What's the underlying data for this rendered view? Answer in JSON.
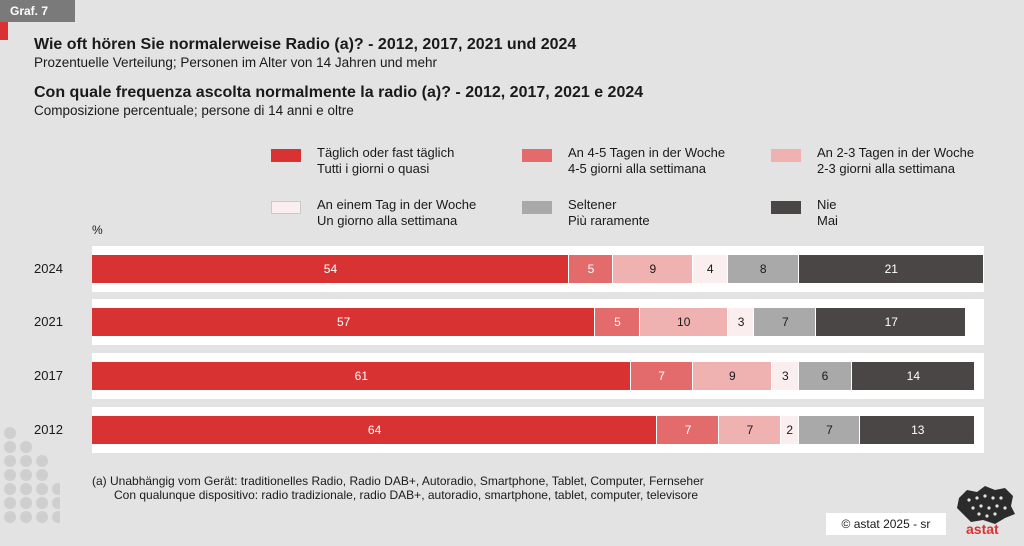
{
  "graph_tag": "Graf. 7",
  "title_de": "Wie oft hören Sie normalerweise Radio (a)? - 2012, 2017, 2021 und 2024",
  "subtitle_de": "Prozentuelle Verteilung; Personen im Alter von 14 Jahren und mehr",
  "title_it": "Con quale frequenza ascolta normalmente la radio (a)? - 2012, 2017, 2021 e 2024",
  "subtitle_it": "Composizione percentuale; persone di 14 anni e oltre",
  "legend": [
    {
      "de": "Täglich oder fast täglich",
      "it": "Tutti i giorni o quasi",
      "color": "#d93232"
    },
    {
      "de": "An 4-5 Tagen in der Woche",
      "it": "4-5 giorni alla settimana",
      "color": "#e36b6b"
    },
    {
      "de": "An 2-3 Tagen  in der Woche",
      "it": "2-3 giorni alla settimana",
      "color": "#f0b1b1"
    },
    {
      "de": "An einem Tag in der Woche",
      "it": "Un giorno alla settimana",
      "color": "#fbeeee"
    },
    {
      "de": "Seltener",
      "it": "Più raramente",
      "color": "#a9a9a9"
    },
    {
      "de": "Nie",
      "it": "Mai",
      "color": "#4a4646"
    }
  ],
  "chart_data": {
    "type": "bar",
    "orientation": "horizontal",
    "stacked": true,
    "unit_label": "%",
    "categories": [
      "2024",
      "2021",
      "2017",
      "2012"
    ],
    "series": [
      {
        "name": "Täglich oder fast täglich / Tutti i giorni o quasi",
        "values": [
          54,
          57,
          61,
          64
        ],
        "color": "#d93232",
        "label_color": "#ffffff"
      },
      {
        "name": "An 4-5 Tagen in der Woche / 4-5 giorni alla settimana",
        "values": [
          5,
          5,
          7,
          7
        ],
        "color": "#e36b6b",
        "label_color": "#ffffff"
      },
      {
        "name": "An 2-3 Tagen  in der Woche / 2-3 giorni alla settimana",
        "values": [
          9,
          10,
          9,
          7
        ],
        "color": "#f0b1b1",
        "label_color": "#1a1a1a"
      },
      {
        "name": "An einem Tag in der Woche / Un giorno alla settimana",
        "values": [
          4,
          3,
          3,
          2
        ],
        "color": "#fbeeee",
        "label_color": "#1a1a1a"
      },
      {
        "name": "Seltener / Più raramente",
        "values": [
          8,
          7,
          6,
          7
        ],
        "color": "#a9a9a9",
        "label_color": "#1a1a1a"
      },
      {
        "name": "Nie / Mai",
        "values": [
          21,
          17,
          14,
          13
        ],
        "color": "#4a4646",
        "label_color": "#ffffff"
      }
    ],
    "xlim": [
      0,
      101
    ]
  },
  "footnote_de": "(a)  Unabhängig vom Gerät: traditionelles Radio, Radio DAB+, Autoradio, Smartphone, Tablet, Computer, Fernseher",
  "footnote_it": "Con qualunque dispositivo: radio tradizionale, radio DAB+, autoradio, smartphone, tablet, computer, televisore",
  "credit": "©  astat 2025 - sr",
  "logo_text": "astat"
}
